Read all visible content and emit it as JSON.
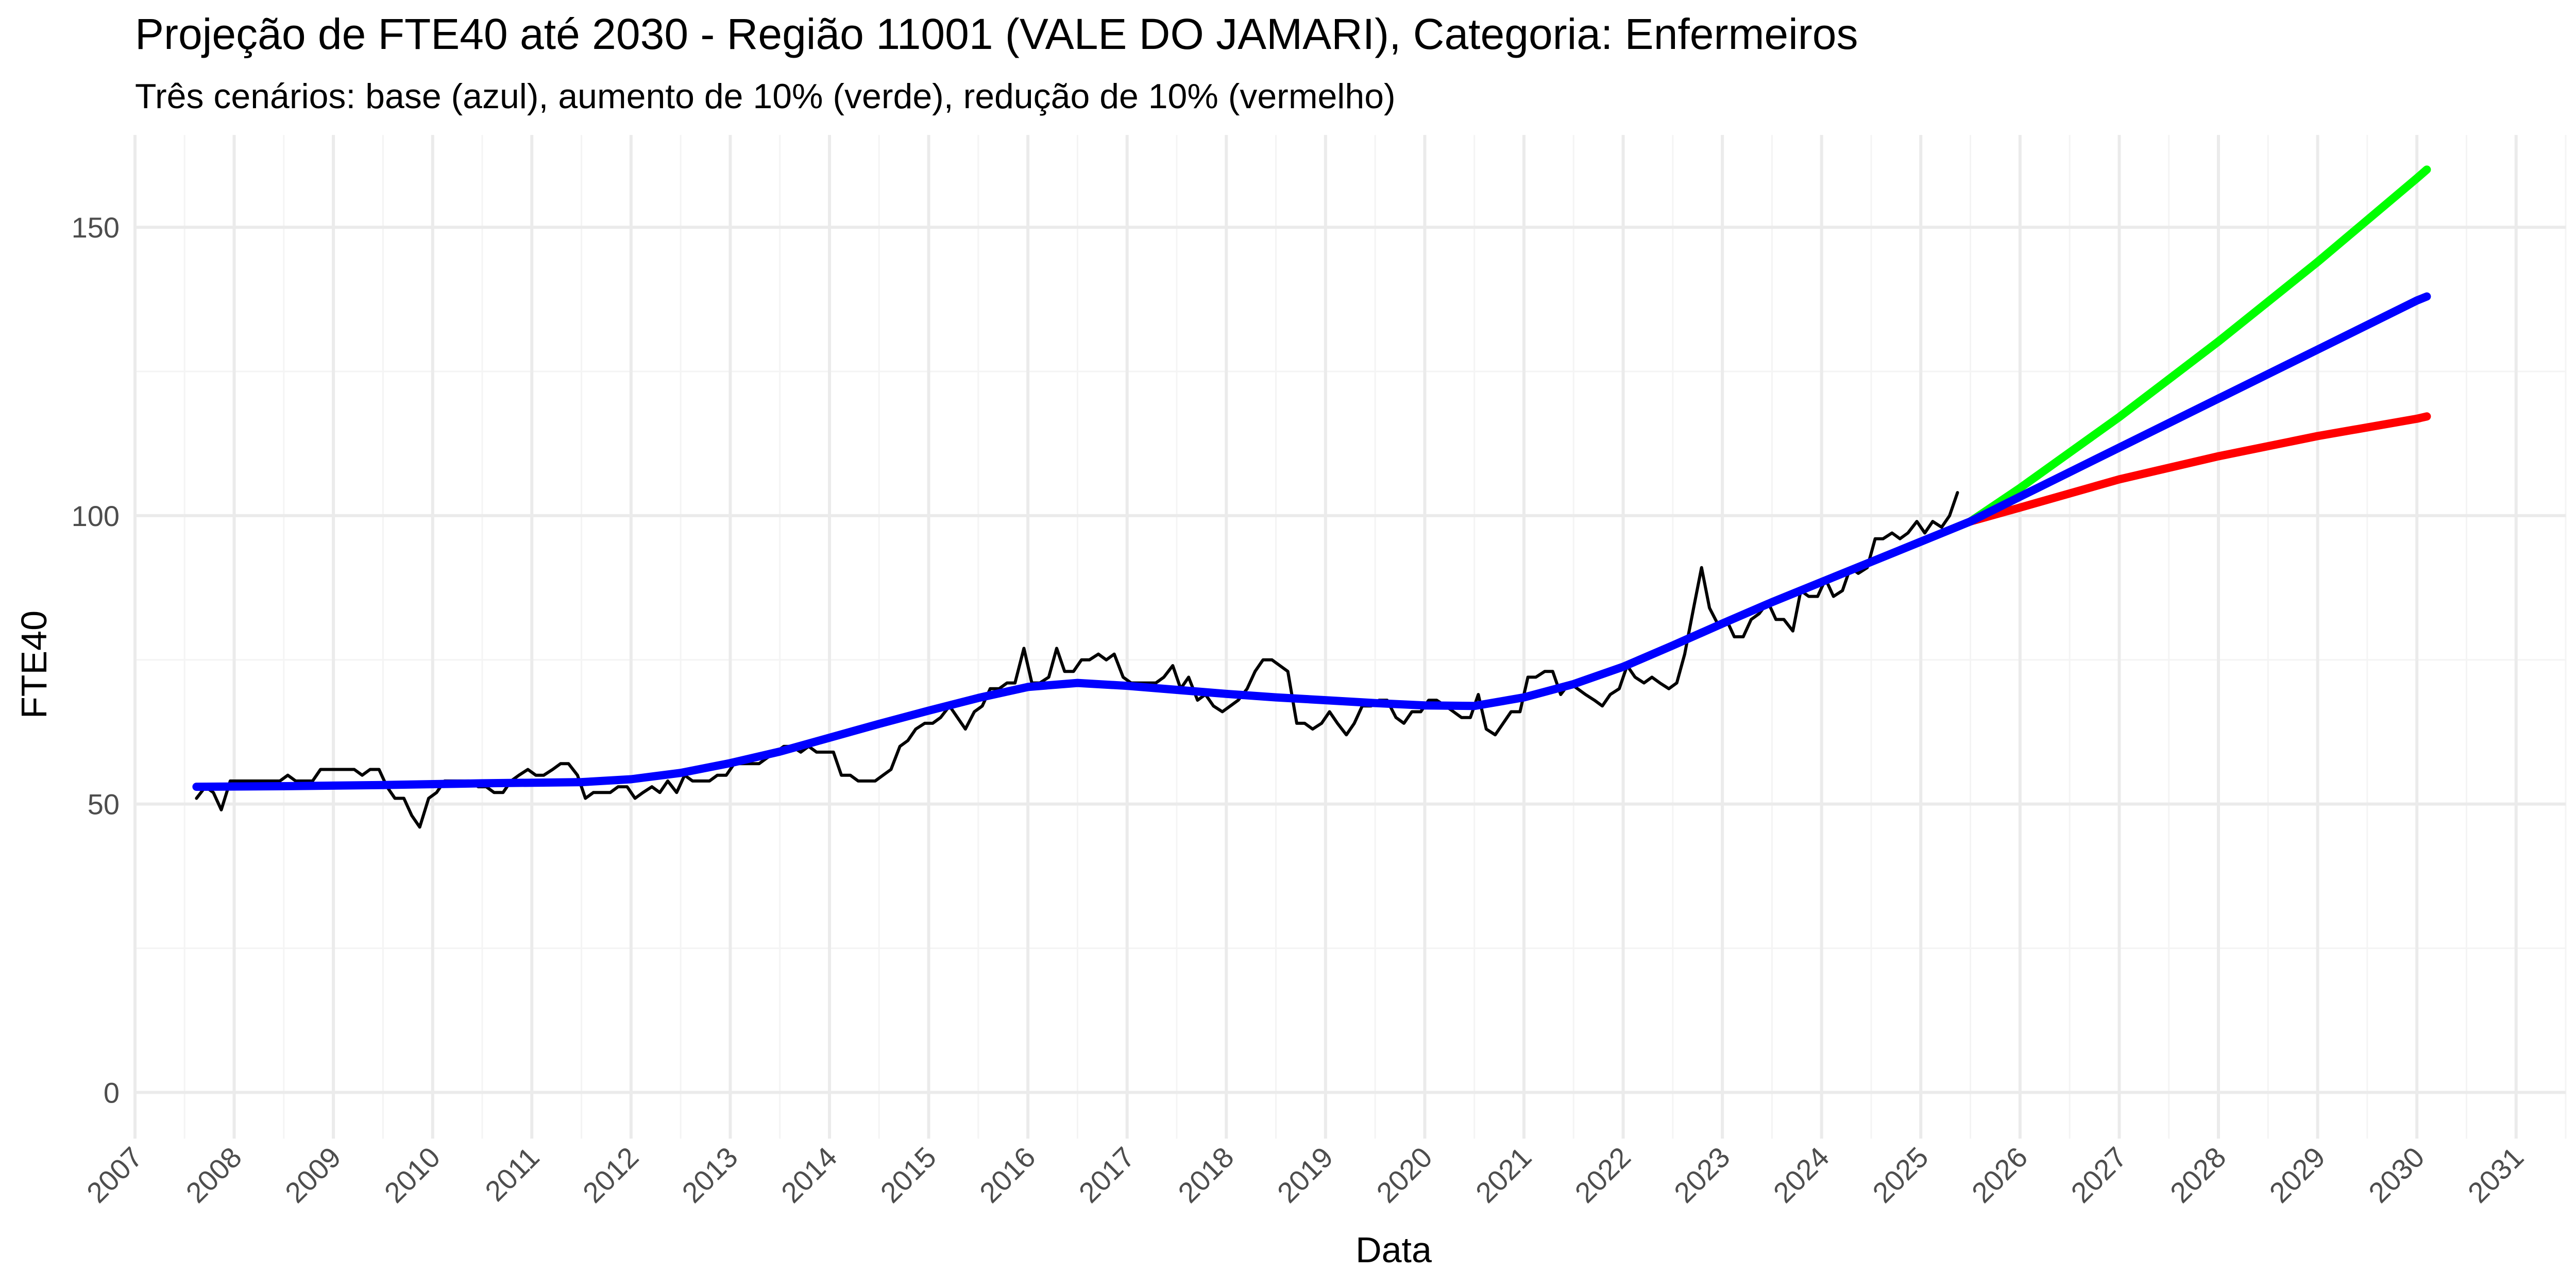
{
  "chart_data": {
    "type": "line",
    "title": "Projeção de FTE40 até 2030 - Região 11001 (VALE DO JAMARI), Categoria: Enfermeiros",
    "subtitle": "Três cenários: base (azul), aumento de 10% (verde), redução de 10% (vermelho)",
    "xlabel": "Data",
    "ylabel": "FTE40",
    "xlim": [
      2007.0,
      2031.5
    ],
    "ylim": [
      -8,
      166
    ],
    "x_ticks": [
      "2007",
      "2008",
      "2009",
      "2010",
      "2011",
      "2012",
      "2013",
      "2014",
      "2015",
      "2016",
      "2017",
      "2018",
      "2019",
      "2020",
      "2021",
      "2022",
      "2023",
      "2024",
      "2025",
      "2026",
      "2027",
      "2028",
      "2029",
      "2030",
      "2031"
    ],
    "y_ticks": [
      0,
      50,
      100,
      150
    ],
    "grid": true,
    "colors": {
      "observed": "#000000",
      "base": "#0000ff",
      "aumento": "#00ff00",
      "reducao": "#ff0000"
    },
    "series": [
      {
        "key": "observed",
        "values": [
          [
            2007.62,
            51
          ],
          [
            2007.71,
            53
          ],
          [
            2007.79,
            52
          ],
          [
            2007.87,
            49
          ],
          [
            2007.96,
            54
          ],
          [
            2008.04,
            54
          ],
          [
            2008.12,
            54
          ],
          [
            2008.21,
            54
          ],
          [
            2008.29,
            54
          ],
          [
            2008.37,
            54
          ],
          [
            2008.46,
            54
          ],
          [
            2008.54,
            55
          ],
          [
            2008.62,
            54
          ],
          [
            2008.71,
            54
          ],
          [
            2008.79,
            54
          ],
          [
            2008.87,
            56
          ],
          [
            2008.96,
            56
          ],
          [
            2009.04,
            56
          ],
          [
            2009.12,
            56
          ],
          [
            2009.21,
            56
          ],
          [
            2009.29,
            55
          ],
          [
            2009.37,
            56
          ],
          [
            2009.46,
            56
          ],
          [
            2009.54,
            53
          ],
          [
            2009.62,
            51
          ],
          [
            2009.71,
            51
          ],
          [
            2009.79,
            48
          ],
          [
            2009.87,
            46
          ],
          [
            2009.96,
            51
          ],
          [
            2010.04,
            52
          ],
          [
            2010.12,
            54
          ],
          [
            2010.21,
            54
          ],
          [
            2010.29,
            54
          ],
          [
            2010.37,
            54
          ],
          [
            2010.46,
            53
          ],
          [
            2010.54,
            53
          ],
          [
            2010.62,
            52
          ],
          [
            2010.71,
            52
          ],
          [
            2010.79,
            54
          ],
          [
            2010.87,
            55
          ],
          [
            2010.96,
            56
          ],
          [
            2011.04,
            55
          ],
          [
            2011.12,
            55
          ],
          [
            2011.21,
            56
          ],
          [
            2011.29,
            57
          ],
          [
            2011.37,
            57
          ],
          [
            2011.46,
            55
          ],
          [
            2011.54,
            51
          ],
          [
            2011.62,
            52
          ],
          [
            2011.71,
            52
          ],
          [
            2011.79,
            52
          ],
          [
            2011.87,
            53
          ],
          [
            2011.96,
            53
          ],
          [
            2012.04,
            51
          ],
          [
            2012.12,
            52
          ],
          [
            2012.21,
            53
          ],
          [
            2012.29,
            52
          ],
          [
            2012.37,
            54
          ],
          [
            2012.46,
            52
          ],
          [
            2012.54,
            55
          ],
          [
            2012.62,
            54
          ],
          [
            2012.71,
            54
          ],
          [
            2012.79,
            54
          ],
          [
            2012.87,
            55
          ],
          [
            2012.96,
            55
          ],
          [
            2013.04,
            57
          ],
          [
            2013.12,
            57
          ],
          [
            2013.21,
            57
          ],
          [
            2013.29,
            57
          ],
          [
            2013.37,
            58
          ],
          [
            2013.46,
            59
          ],
          [
            2013.54,
            60
          ],
          [
            2013.62,
            60
          ],
          [
            2013.71,
            59
          ],
          [
            2013.79,
            60
          ],
          [
            2013.87,
            59
          ],
          [
            2013.96,
            59
          ],
          [
            2014.04,
            59
          ],
          [
            2014.12,
            55
          ],
          [
            2014.21,
            55
          ],
          [
            2014.29,
            54
          ],
          [
            2014.37,
            54
          ],
          [
            2014.46,
            54
          ],
          [
            2014.54,
            55
          ],
          [
            2014.62,
            56
          ],
          [
            2014.71,
            60
          ],
          [
            2014.79,
            61
          ],
          [
            2014.87,
            63
          ],
          [
            2014.96,
            64
          ],
          [
            2015.04,
            64
          ],
          [
            2015.12,
            65
          ],
          [
            2015.21,
            67
          ],
          [
            2015.29,
            65
          ],
          [
            2015.37,
            63
          ],
          [
            2015.46,
            66
          ],
          [
            2015.54,
            67
          ],
          [
            2015.62,
            70
          ],
          [
            2015.71,
            70
          ],
          [
            2015.79,
            71
          ],
          [
            2015.87,
            71
          ],
          [
            2015.96,
            77
          ],
          [
            2016.04,
            71
          ],
          [
            2016.12,
            71
          ],
          [
            2016.21,
            72
          ],
          [
            2016.29,
            77
          ],
          [
            2016.37,
            73
          ],
          [
            2016.46,
            73
          ],
          [
            2016.54,
            75
          ],
          [
            2016.62,
            75
          ],
          [
            2016.71,
            76
          ],
          [
            2016.79,
            75
          ],
          [
            2016.87,
            76
          ],
          [
            2016.96,
            72
          ],
          [
            2017.04,
            71
          ],
          [
            2017.12,
            71
          ],
          [
            2017.21,
            71
          ],
          [
            2017.29,
            71
          ],
          [
            2017.37,
            72
          ],
          [
            2017.46,
            74
          ],
          [
            2017.54,
            70
          ],
          [
            2017.62,
            72
          ],
          [
            2017.71,
            68
          ],
          [
            2017.79,
            69
          ],
          [
            2017.87,
            67
          ],
          [
            2017.96,
            66
          ],
          [
            2018.04,
            67
          ],
          [
            2018.12,
            68
          ],
          [
            2018.21,
            70
          ],
          [
            2018.29,
            73
          ],
          [
            2018.37,
            75
          ],
          [
            2018.46,
            75
          ],
          [
            2018.54,
            74
          ],
          [
            2018.62,
            73
          ],
          [
            2018.71,
            64
          ],
          [
            2018.79,
            64
          ],
          [
            2018.87,
            63
          ],
          [
            2018.96,
            64
          ],
          [
            2019.04,
            66
          ],
          [
            2019.12,
            64
          ],
          [
            2019.21,
            62
          ],
          [
            2019.29,
            64
          ],
          [
            2019.37,
            67
          ],
          [
            2019.46,
            67
          ],
          [
            2019.54,
            68
          ],
          [
            2019.62,
            68
          ],
          [
            2019.71,
            65
          ],
          [
            2019.79,
            64
          ],
          [
            2019.87,
            66
          ],
          [
            2019.96,
            66
          ],
          [
            2020.04,
            68
          ],
          [
            2020.12,
            68
          ],
          [
            2020.21,
            67
          ],
          [
            2020.29,
            66
          ],
          [
            2020.37,
            65
          ],
          [
            2020.46,
            65
          ],
          [
            2020.54,
            69
          ],
          [
            2020.62,
            63
          ],
          [
            2020.71,
            62
          ],
          [
            2020.79,
            64
          ],
          [
            2020.87,
            66
          ],
          [
            2020.96,
            66
          ],
          [
            2021.04,
            72
          ],
          [
            2021.12,
            72
          ],
          [
            2021.21,
            73
          ],
          [
            2021.29,
            73
          ],
          [
            2021.37,
            69
          ],
          [
            2021.46,
            71
          ],
          [
            2021.54,
            70
          ],
          [
            2021.62,
            69
          ],
          [
            2021.71,
            68
          ],
          [
            2021.79,
            67
          ],
          [
            2021.87,
            69
          ],
          [
            2021.96,
            70
          ],
          [
            2022.04,
            74
          ],
          [
            2022.12,
            72
          ],
          [
            2022.21,
            71
          ],
          [
            2022.29,
            72
          ],
          [
            2022.37,
            71
          ],
          [
            2022.46,
            70
          ],
          [
            2022.54,
            71
          ],
          [
            2022.62,
            76
          ],
          [
            2022.71,
            84
          ],
          [
            2022.79,
            91
          ],
          [
            2022.87,
            84
          ],
          [
            2022.96,
            81
          ],
          [
            2023.04,
            82
          ],
          [
            2023.12,
            79
          ],
          [
            2023.21,
            79
          ],
          [
            2023.29,
            82
          ],
          [
            2023.37,
            83
          ],
          [
            2023.46,
            85
          ],
          [
            2023.54,
            82
          ],
          [
            2023.62,
            82
          ],
          [
            2023.71,
            80
          ],
          [
            2023.79,
            87
          ],
          [
            2023.87,
            86
          ],
          [
            2023.96,
            86
          ],
          [
            2024.04,
            89
          ],
          [
            2024.12,
            86
          ],
          [
            2024.21,
            87
          ],
          [
            2024.29,
            91
          ],
          [
            2024.37,
            90
          ],
          [
            2024.46,
            91
          ],
          [
            2024.54,
            96
          ],
          [
            2024.62,
            96
          ],
          [
            2024.71,
            97
          ],
          [
            2024.79,
            96
          ],
          [
            2024.87,
            97
          ],
          [
            2024.96,
            99
          ],
          [
            2025.04,
            97
          ],
          [
            2025.12,
            99
          ],
          [
            2025.21,
            98
          ],
          [
            2025.29,
            100
          ],
          [
            2025.37,
            104
          ]
        ]
      },
      {
        "key": "base",
        "values": [
          [
            2007.62,
            53
          ],
          [
            2008.5,
            53.1
          ],
          [
            2009.5,
            53.3
          ],
          [
            2010.5,
            53.6
          ],
          [
            2011.5,
            53.8
          ],
          [
            2012.0,
            54.3
          ],
          [
            2012.5,
            55.4
          ],
          [
            2013.0,
            57.1
          ],
          [
            2013.5,
            59.1
          ],
          [
            2014.0,
            61.5
          ],
          [
            2014.5,
            63.9
          ],
          [
            2015.0,
            66.2
          ],
          [
            2015.5,
            68.4
          ],
          [
            2016.0,
            70.3
          ],
          [
            2016.5,
            71.0
          ],
          [
            2017.0,
            70.5
          ],
          [
            2017.5,
            69.8
          ],
          [
            2018.0,
            69.1
          ],
          [
            2018.5,
            68.5
          ],
          [
            2019.0,
            68.0
          ],
          [
            2019.5,
            67.5
          ],
          [
            2020.0,
            67.1
          ],
          [
            2020.5,
            67.0
          ],
          [
            2021.0,
            68.5
          ],
          [
            2021.5,
            70.8
          ],
          [
            2022.0,
            73.8
          ],
          [
            2022.5,
            77.5
          ],
          [
            2023.0,
            81.3
          ],
          [
            2023.5,
            85.0
          ],
          [
            2024.0,
            88.5
          ],
          [
            2024.5,
            92.0
          ],
          [
            2025.0,
            95.5
          ],
          [
            2025.5,
            99.0
          ]
        ]
      },
      {
        "key": "base_proj",
        "values": [
          [
            2025.5,
            99
          ],
          [
            2026.0,
            103.3
          ],
          [
            2027.0,
            111.8
          ],
          [
            2028.0,
            120.3
          ],
          [
            2029.0,
            128.8
          ],
          [
            2030.0,
            137.3
          ],
          [
            2030.1,
            138
          ]
        ]
      },
      {
        "key": "aumento",
        "values": [
          [
            2025.5,
            99
          ],
          [
            2026.0,
            104.8
          ],
          [
            2027.0,
            117.1
          ],
          [
            2028.0,
            130.2
          ],
          [
            2029.0,
            144.0
          ],
          [
            2030.0,
            158.5
          ],
          [
            2030.1,
            160
          ]
        ]
      },
      {
        "key": "reducao",
        "values": [
          [
            2025.5,
            99
          ],
          [
            2026.0,
            101.4
          ],
          [
            2027.0,
            106.3
          ],
          [
            2028.0,
            110.3
          ],
          [
            2029.0,
            113.8
          ],
          [
            2030.0,
            116.8
          ],
          [
            2030.1,
            117.2
          ]
        ]
      }
    ]
  }
}
